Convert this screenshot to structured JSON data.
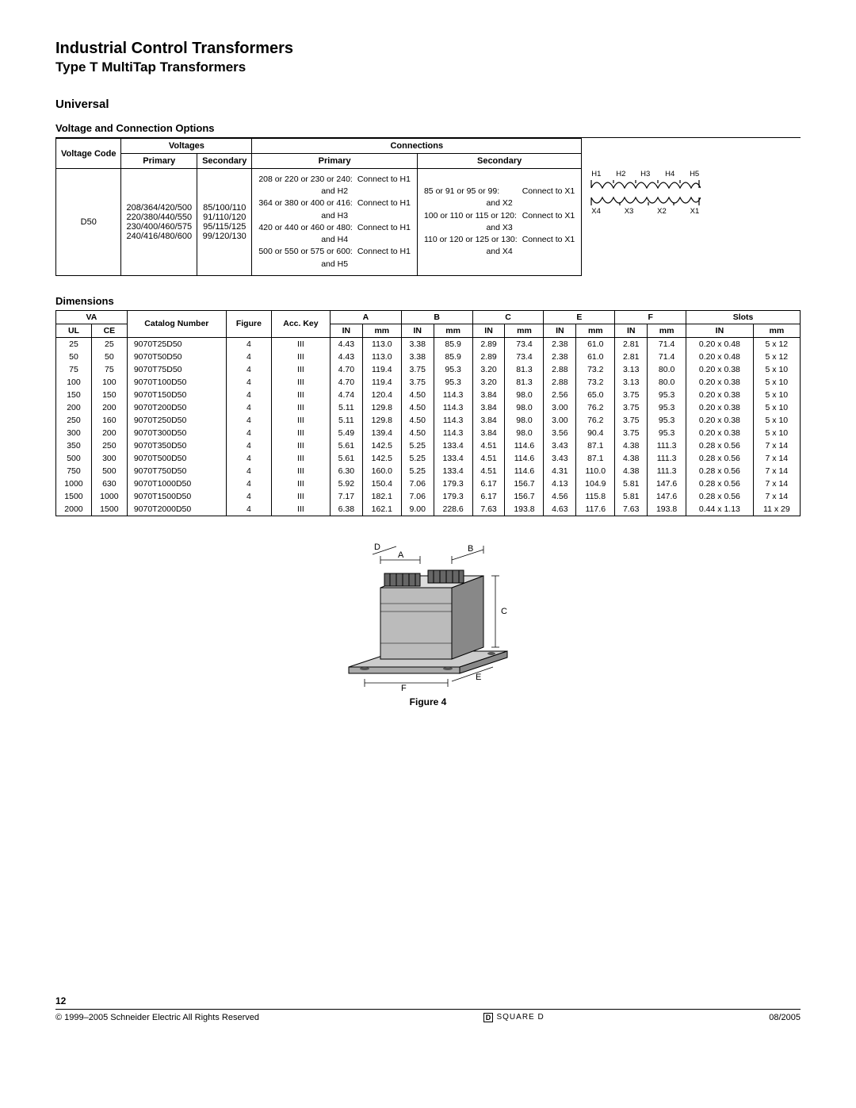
{
  "header": {
    "title": "Industrial Control Transformers",
    "subtitle": "Type T MultiTap Transformers"
  },
  "section1": "Universal",
  "vco": {
    "heading": "Voltage and Connection Options",
    "headers": {
      "voltage_code": "Voltage Code",
      "voltages": "Voltages",
      "connections": "Connections",
      "primary": "Primary",
      "secondary": "Secondary"
    },
    "code": "D50",
    "primary_voltages": "208/364/420/500\n220/380/440/550\n230/400/460/575\n240/416/480/600",
    "secondary_voltages": "85/100/110\n91/110/120\n95/115/125\n99/120/130",
    "primary_conn": [
      {
        "l": "208 or 220 or 230 or 240:",
        "r": "Connect to H1 and H2"
      },
      {
        "l": "364 or 380 or 400 or 416:",
        "r": "Connect to H1 and H3"
      },
      {
        "l": "420 or 440 or 460 or 480:",
        "r": "Connect to H1 and H4"
      },
      {
        "l": "500 or 550 or 575 or 600:",
        "r": "Connect to H1 and H5"
      }
    ],
    "secondary_conn": [
      {
        "l": "85 or 91 or 95 or 99:",
        "r": "Connect to X1 and X2"
      },
      {
        "l": "100 or 110 or 115 or 120:",
        "r": "Connect to X1 and X3"
      },
      {
        "l": "110 or 120 or 125 or 130:",
        "r": "Connect to X1 and X4"
      }
    ],
    "coil_top": [
      "H1",
      "H2",
      "H3",
      "H4",
      "H5"
    ],
    "coil_bottom": [
      "X4",
      "X3",
      "X2",
      "X1"
    ]
  },
  "dim": {
    "heading": "Dimensions",
    "headers": {
      "va": "VA",
      "ul": "UL",
      "ce": "CE",
      "catalog": "Catalog Number",
      "figure": "Figure",
      "acc": "Acc. Key",
      "a": "A",
      "b": "B",
      "c": "C",
      "e": "E",
      "f": "F",
      "slots": "Slots",
      "in": "IN",
      "mm": "mm"
    },
    "rows": [
      {
        "ul": 25,
        "ce": 25,
        "cat": "9070T25D50",
        "fig": 4,
        "acc": "III",
        "a_in": 4.43,
        "a_mm": 113.0,
        "b_in": 3.38,
        "b_mm": 85.9,
        "c_in": 2.89,
        "c_mm": 73.4,
        "e_in": 2.38,
        "e_mm": 61.0,
        "f_in": 2.81,
        "f_mm": 71.4,
        "s_in": "0.20 x 0.48",
        "s_mm": "5 x 12"
      },
      {
        "ul": 50,
        "ce": 50,
        "cat": "9070T50D50",
        "fig": 4,
        "acc": "III",
        "a_in": 4.43,
        "a_mm": 113.0,
        "b_in": 3.38,
        "b_mm": 85.9,
        "c_in": 2.89,
        "c_mm": 73.4,
        "e_in": 2.38,
        "e_mm": 61.0,
        "f_in": 2.81,
        "f_mm": 71.4,
        "s_in": "0.20 x 0.48",
        "s_mm": "5 x 12"
      },
      {
        "ul": 75,
        "ce": 75,
        "cat": "9070T75D50",
        "fig": 4,
        "acc": "III",
        "a_in": 4.7,
        "a_mm": 119.4,
        "b_in": 3.75,
        "b_mm": 95.3,
        "c_in": 3.2,
        "c_mm": 81.3,
        "e_in": 2.88,
        "e_mm": 73.2,
        "f_in": 3.13,
        "f_mm": 80.0,
        "s_in": "0.20 x 0.38",
        "s_mm": "5 x 10"
      },
      {
        "ul": 100,
        "ce": 100,
        "cat": "9070T100D50",
        "fig": 4,
        "acc": "III",
        "a_in": 4.7,
        "a_mm": 119.4,
        "b_in": 3.75,
        "b_mm": 95.3,
        "c_in": 3.2,
        "c_mm": 81.3,
        "e_in": 2.88,
        "e_mm": 73.2,
        "f_in": 3.13,
        "f_mm": 80.0,
        "s_in": "0.20 x 0.38",
        "s_mm": "5 x 10"
      },
      {
        "ul": 150,
        "ce": 150,
        "cat": "9070T150D50",
        "fig": 4,
        "acc": "III",
        "a_in": 4.74,
        "a_mm": 120.4,
        "b_in": 4.5,
        "b_mm": 114.3,
        "c_in": 3.84,
        "c_mm": 98.0,
        "e_in": 2.56,
        "e_mm": 65.0,
        "f_in": 3.75,
        "f_mm": 95.3,
        "s_in": "0.20 x 0.38",
        "s_mm": "5 x 10"
      },
      {
        "ul": 200,
        "ce": 200,
        "cat": "9070T200D50",
        "fig": 4,
        "acc": "III",
        "a_in": 5.11,
        "a_mm": 129.8,
        "b_in": 4.5,
        "b_mm": 114.3,
        "c_in": 3.84,
        "c_mm": 98.0,
        "e_in": 3.0,
        "e_mm": 76.2,
        "f_in": 3.75,
        "f_mm": 95.3,
        "s_in": "0.20 x 0.38",
        "s_mm": "5 x 10"
      },
      {
        "ul": 250,
        "ce": 160,
        "cat": "9070T250D50",
        "fig": 4,
        "acc": "III",
        "a_in": 5.11,
        "a_mm": 129.8,
        "b_in": 4.5,
        "b_mm": 114.3,
        "c_in": 3.84,
        "c_mm": 98.0,
        "e_in": 3.0,
        "e_mm": 76.2,
        "f_in": 3.75,
        "f_mm": 95.3,
        "s_in": "0.20 x 0.38",
        "s_mm": "5 x 10"
      },
      {
        "ul": 300,
        "ce": 200,
        "cat": "9070T300D50",
        "fig": 4,
        "acc": "III",
        "a_in": 5.49,
        "a_mm": 139.4,
        "b_in": 4.5,
        "b_mm": 114.3,
        "c_in": 3.84,
        "c_mm": 98.0,
        "e_in": 3.56,
        "e_mm": 90.4,
        "f_in": 3.75,
        "f_mm": 95.3,
        "s_in": "0.20 x 0.38",
        "s_mm": "5 x 10"
      },
      {
        "ul": 350,
        "ce": 250,
        "cat": "9070T350D50",
        "fig": 4,
        "acc": "III",
        "a_in": 5.61,
        "a_mm": 142.5,
        "b_in": 5.25,
        "b_mm": 133.4,
        "c_in": 4.51,
        "c_mm": 114.6,
        "e_in": 3.43,
        "e_mm": 87.1,
        "f_in": 4.38,
        "f_mm": 111.3,
        "s_in": "0.28 x 0.56",
        "s_mm": "7 x 14"
      },
      {
        "ul": 500,
        "ce": 300,
        "cat": "9070T500D50",
        "fig": 4,
        "acc": "III",
        "a_in": 5.61,
        "a_mm": 142.5,
        "b_in": 5.25,
        "b_mm": 133.4,
        "c_in": 4.51,
        "c_mm": 114.6,
        "e_in": 3.43,
        "e_mm": 87.1,
        "f_in": 4.38,
        "f_mm": 111.3,
        "s_in": "0.28 x 0.56",
        "s_mm": "7 x 14"
      },
      {
        "ul": 750,
        "ce": 500,
        "cat": "9070T750D50",
        "fig": 4,
        "acc": "III",
        "a_in": 6.3,
        "a_mm": 160.0,
        "b_in": 5.25,
        "b_mm": 133.4,
        "c_in": 4.51,
        "c_mm": 114.6,
        "e_in": 4.31,
        "e_mm": 110.0,
        "f_in": 4.38,
        "f_mm": 111.3,
        "s_in": "0.28 x 0.56",
        "s_mm": "7 x 14"
      },
      {
        "ul": 1000,
        "ce": 630,
        "cat": "9070T1000D50",
        "fig": 4,
        "acc": "III",
        "a_in": 5.92,
        "a_mm": 150.4,
        "b_in": 7.06,
        "b_mm": 179.3,
        "c_in": 6.17,
        "c_mm": 156.7,
        "e_in": 4.13,
        "e_mm": 104.9,
        "f_in": 5.81,
        "f_mm": 147.6,
        "s_in": "0.28 x 0.56",
        "s_mm": "7 x 14"
      },
      {
        "ul": 1500,
        "ce": 1000,
        "cat": "9070T1500D50",
        "fig": 4,
        "acc": "III",
        "a_in": 7.17,
        "a_mm": 182.1,
        "b_in": 7.06,
        "b_mm": 179.3,
        "c_in": 6.17,
        "c_mm": 156.7,
        "e_in": 4.56,
        "e_mm": 115.8,
        "f_in": 5.81,
        "f_mm": 147.6,
        "s_in": "0.28 x 0.56",
        "s_mm": "7 x 14"
      },
      {
        "ul": 2000,
        "ce": 1500,
        "cat": "9070T2000D50",
        "fig": 4,
        "acc": "III",
        "a_in": 6.38,
        "a_mm": 162.1,
        "b_in": 9.0,
        "b_mm": 228.6,
        "c_in": 7.63,
        "c_mm": 193.8,
        "e_in": 4.63,
        "e_mm": 117.6,
        "f_in": 7.63,
        "f_mm": 193.8,
        "s_in": "0.44 x 1.13",
        "s_mm": "11 x 29"
      }
    ]
  },
  "figure": {
    "caption": "Figure 4",
    "labels": {
      "A": "A",
      "B": "B",
      "C": "C",
      "D": "D",
      "E": "E",
      "F": "F"
    }
  },
  "footer": {
    "page": "12",
    "copyright": "© 1999–2005 Schneider Electric  All Rights Reserved",
    "brand": "SQUARE D",
    "brand_mark": "D",
    "date": "08/2005"
  },
  "colors": {
    "text": "#000000",
    "bg": "#ffffff",
    "rule": "#000000",
    "fig_fill": "#cccccc",
    "fig_dark": "#777777"
  }
}
